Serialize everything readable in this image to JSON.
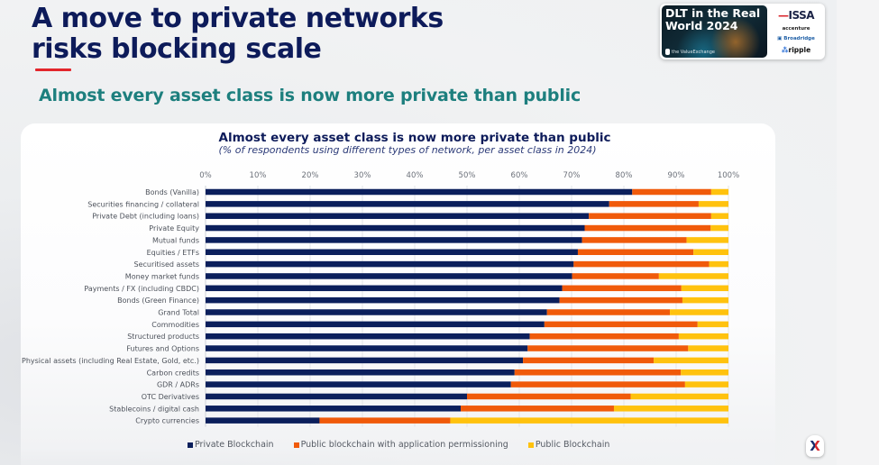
{
  "slide": {
    "title_line1": "A move to private networks",
    "title_line2": "risks blocking scale",
    "subtitle": "Almost every asset class is now more private than public",
    "accent_underline_color": "#e3262c"
  },
  "badge": {
    "title_line1": "DLT in the Real",
    "title_line2": "World 2024",
    "organizer": "the ValueExchange",
    "sponsors": {
      "issa": "ISSA",
      "accenture": "accenture",
      "broadridge": "Broadridge",
      "ripple": "ripple"
    }
  },
  "footer_logo": {
    "glyph": "X",
    "icon": "valueexchange-logo-icon"
  },
  "chart_data": {
    "type": "bar",
    "orientation": "horizontal",
    "stacked": true,
    "title": "Almost every asset class is now more private than public",
    "subtitle": "(% of respondents using different types of network, per asset class in 2024)",
    "xlabel": "",
    "ylabel": "",
    "xlim": [
      0,
      100
    ],
    "x_ticks": [
      "0%",
      "10%",
      "20%",
      "30%",
      "40%",
      "50%",
      "60%",
      "70%",
      "80%",
      "90%",
      "100%"
    ],
    "grid": true,
    "legend_position": "bottom",
    "categories": [
      "Bonds (Vanilla)",
      "Securities financing / collateral",
      "Private Debt (including loans)",
      "Private Equity",
      "Mutual funds",
      "Equities / ETFs",
      "Securitised assets",
      "Money market funds",
      "Payments / FX (including CBDC)",
      "Bonds (Green Finance)",
      "Grand Total",
      "Commodities",
      "Structured products",
      "Futures and Options",
      "Physical assets (including Real Estate, Gold, etc.)",
      "Carbon credits",
      "GDR / ADRs",
      "OTC Derivatives",
      "Stablecoins / digital cash",
      "Crypto currencies"
    ],
    "series": [
      {
        "name": "Private Blockchain",
        "color": "#0b1f5c",
        "values": [
          81.6,
          77.2,
          73.3,
          72.5,
          72.0,
          71.2,
          70.4,
          70.1,
          68.2,
          67.7,
          65.3,
          64.8,
          62.0,
          61.6,
          60.7,
          59.1,
          58.4,
          50.0,
          48.8,
          21.8
        ]
      },
      {
        "name": "Public blockchain with application permissioning",
        "color": "#f05a0a",
        "values": [
          15.1,
          17.1,
          23.4,
          24.1,
          20.0,
          22.1,
          25.9,
          16.6,
          22.8,
          23.5,
          23.5,
          29.3,
          28.5,
          30.7,
          25.0,
          31.8,
          33.3,
          31.3,
          29.3,
          25.0
        ]
      },
      {
        "name": "Public Blockchain",
        "color": "#ffc20e",
        "values": [
          3.3,
          5.7,
          3.3,
          3.4,
          8.0,
          6.7,
          3.7,
          13.3,
          9.0,
          8.8,
          11.2,
          5.9,
          9.5,
          7.7,
          14.3,
          9.1,
          8.3,
          18.7,
          21.9,
          53.2
        ]
      }
    ]
  }
}
